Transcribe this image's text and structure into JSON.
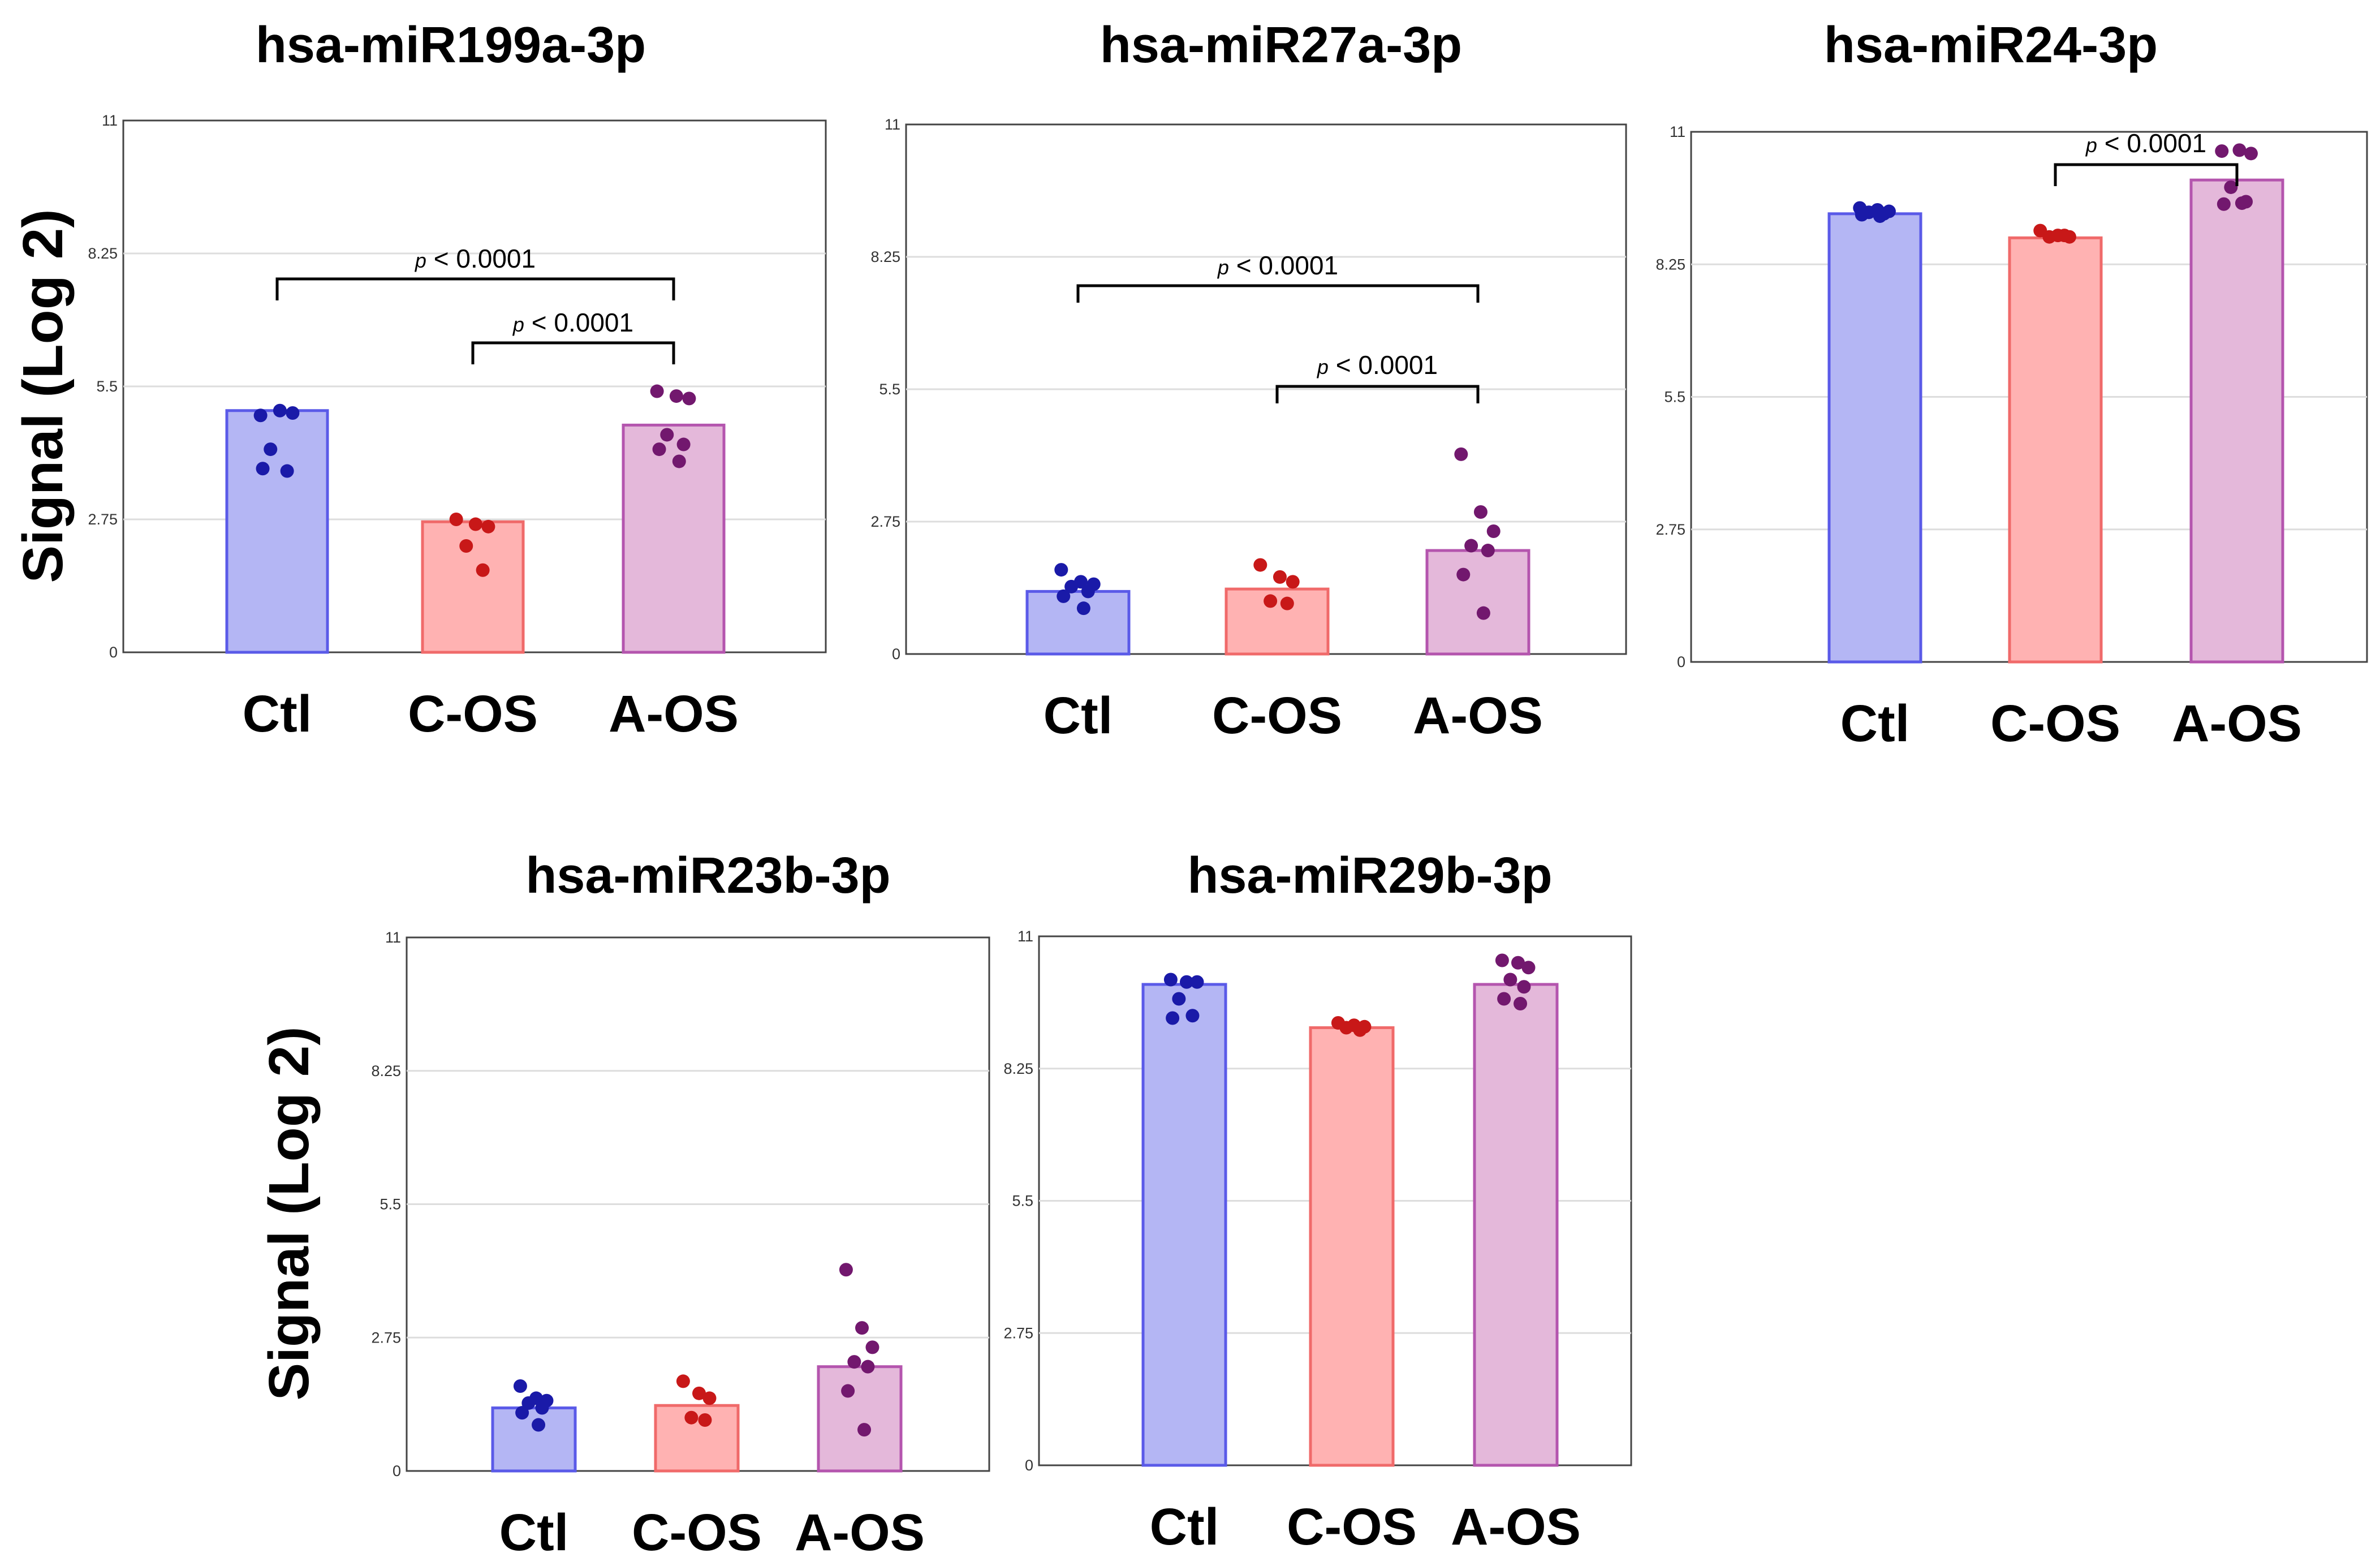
{
  "figure": {
    "ylabel": "Signal (Log 2)"
  },
  "chart_data": [
    {
      "type": "bar",
      "title": "hsa-miR199a-3p",
      "xlabel": "",
      "ylabel": "Signal (Log 2)",
      "ylim": [
        0,
        11
      ],
      "yticks": [
        0,
        2.75,
        5.5,
        8.25,
        11
      ],
      "ytick_labels": [
        "0",
        "2.75",
        "5.5",
        "8.25",
        "11"
      ],
      "grid": true,
      "categories": [
        "Ctl",
        "C-OS",
        "A-OS"
      ],
      "values": [
        5.0,
        2.7,
        4.7
      ],
      "colors": {
        "Ctl": {
          "fill": "#b4b6f4",
          "stroke": "#5a5ae8",
          "dot": "#1a1aa8"
        },
        "C-OS": {
          "fill": "#ffb2b2",
          "stroke": "#f06a6a",
          "dot": "#c81818"
        },
        "A-OS": {
          "fill": "#e4b8da",
          "stroke": "#b455ae",
          "dot": "#72186e"
        }
      },
      "points": {
        "Ctl": [
          4.9,
          5.0,
          4.95,
          4.2,
          3.75,
          3.8
        ],
        "C-OS": [
          2.75,
          2.65,
          2.6,
          2.2,
          1.7
        ],
        "A-OS": [
          5.4,
          5.3,
          5.25,
          4.5,
          4.3,
          4.2,
          3.95
        ]
      },
      "significance": [
        {
          "from": "Ctl",
          "to": "A-OS",
          "p_symbol": "p",
          "label": "< 0.0001"
        },
        {
          "from": "C-OS",
          "to": "A-OS",
          "p_symbol": "p",
          "label": "< 0.0001"
        }
      ]
    },
    {
      "type": "bar",
      "title": "hsa-miR27a-3p",
      "xlabel": "",
      "ylabel": "",
      "ylim": [
        0,
        11
      ],
      "yticks": [
        0,
        2.75,
        5.5,
        8.25,
        11
      ],
      "ytick_labels": [
        "0",
        "2.75",
        "5.5",
        "8.25",
        "11"
      ],
      "grid": true,
      "categories": [
        "Ctl",
        "C-OS",
        "A-OS"
      ],
      "values": [
        1.3,
        1.35,
        2.15
      ],
      "colors": {
        "Ctl": {
          "fill": "#b4b6f4",
          "stroke": "#5a5ae8",
          "dot": "#1a1aa8"
        },
        "C-OS": {
          "fill": "#ffb2b2",
          "stroke": "#f06a6a",
          "dot": "#c81818"
        },
        "A-OS": {
          "fill": "#e4b8da",
          "stroke": "#b455ae",
          "dot": "#72186e"
        }
      },
      "points": {
        "Ctl": [
          1.75,
          1.5,
          1.45,
          1.4,
          1.3,
          1.2,
          0.95
        ],
        "C-OS": [
          1.85,
          1.6,
          1.5,
          1.1,
          1.05
        ],
        "A-OS": [
          4.15,
          2.95,
          2.55,
          2.25,
          2.15,
          1.65,
          0.85
        ]
      },
      "significance": [
        {
          "from": "Ctl",
          "to": "A-OS",
          "p_symbol": "p",
          "label": "< 0.0001"
        },
        {
          "from": "C-OS",
          "to": "A-OS",
          "p_symbol": "p",
          "label": "< 0.0001"
        }
      ]
    },
    {
      "type": "bar",
      "title": "hsa-miR24-3p",
      "xlabel": "",
      "ylabel": "",
      "ylim": [
        0,
        11
      ],
      "yticks": [
        0,
        2.75,
        5.5,
        8.25,
        11
      ],
      "ytick_labels": [
        "0",
        "2.75",
        "5.5",
        "8.25",
        "11"
      ],
      "grid": true,
      "categories": [
        "Ctl",
        "C-OS",
        "A-OS"
      ],
      "values": [
        9.3,
        8.8,
        10.0
      ],
      "colors": {
        "Ctl": {
          "fill": "#b4b6f4",
          "stroke": "#5a5ae8",
          "dot": "#1a1aa8"
        },
        "C-OS": {
          "fill": "#ffb2b2",
          "stroke": "#f06a6a",
          "dot": "#c81818"
        },
        "A-OS": {
          "fill": "#e4b8da",
          "stroke": "#b455ae",
          "dot": "#72186e"
        }
      },
      "points": {
        "Ctl": [
          9.42,
          9.38,
          9.35,
          9.33,
          9.3,
          9.28,
          9.25
        ],
        "C-OS": [
          8.95,
          8.85,
          8.82,
          8.82,
          8.85
        ],
        "A-OS": [
          10.6,
          10.62,
          10.55,
          9.85,
          9.55,
          9.5,
          9.52
        ]
      },
      "significance": [
        {
          "from": "C-OS",
          "to": "A-OS",
          "p_symbol": "p",
          "label": "< 0.0001"
        }
      ]
    },
    {
      "type": "bar",
      "title": "hsa-miR23b-3p",
      "xlabel": "",
      "ylabel": "Signal (Log 2)",
      "ylim": [
        0,
        11
      ],
      "yticks": [
        0,
        2.75,
        5.5,
        8.25,
        11
      ],
      "ytick_labels": [
        "0",
        "2.75",
        "5.5",
        "8.25",
        "11"
      ],
      "grid": true,
      "categories": [
        "Ctl",
        "C-OS",
        "A-OS"
      ],
      "values": [
        1.3,
        1.35,
        2.15
      ],
      "colors": {
        "Ctl": {
          "fill": "#b4b6f4",
          "stroke": "#5a5ae8",
          "dot": "#1a1aa8"
        },
        "C-OS": {
          "fill": "#ffb2b2",
          "stroke": "#f06a6a",
          "dot": "#c81818"
        },
        "A-OS": {
          "fill": "#e4b8da",
          "stroke": "#b455ae",
          "dot": "#72186e"
        }
      },
      "points": {
        "Ctl": [
          1.75,
          1.5,
          1.45,
          1.4,
          1.3,
          1.2,
          0.95
        ],
        "C-OS": [
          1.85,
          1.6,
          1.5,
          1.1,
          1.05
        ],
        "A-OS": [
          4.15,
          2.95,
          2.55,
          2.25,
          2.15,
          1.65,
          0.85
        ]
      },
      "significance": []
    },
    {
      "type": "bar",
      "title": "hsa-miR29b-3p",
      "xlabel": "",
      "ylabel": "",
      "ylim": [
        0,
        11
      ],
      "yticks": [
        0,
        2.75,
        5.5,
        8.25,
        11
      ],
      "ytick_labels": [
        "0",
        "2.75",
        "5.5",
        "8.25",
        "11"
      ],
      "grid": true,
      "categories": [
        "Ctl",
        "C-OS",
        "A-OS"
      ],
      "values": [
        10.0,
        9.1,
        10.0
      ],
      "colors": {
        "Ctl": {
          "fill": "#b4b6f4",
          "stroke": "#5a5ae8",
          "dot": "#1a1aa8"
        },
        "C-OS": {
          "fill": "#ffb2b2",
          "stroke": "#f06a6a",
          "dot": "#c81818"
        },
        "A-OS": {
          "fill": "#e4b8da",
          "stroke": "#b455ae",
          "dot": "#72186e"
        }
      },
      "points": {
        "Ctl": [
          10.1,
          10.05,
          10.05,
          9.7,
          9.35,
          9.3
        ],
        "C-OS": [
          9.2,
          9.15,
          9.12,
          9.1,
          9.05
        ],
        "A-OS": [
          10.5,
          10.45,
          10.35,
          10.1,
          9.95,
          9.7,
          9.6
        ]
      },
      "significance": []
    }
  ]
}
